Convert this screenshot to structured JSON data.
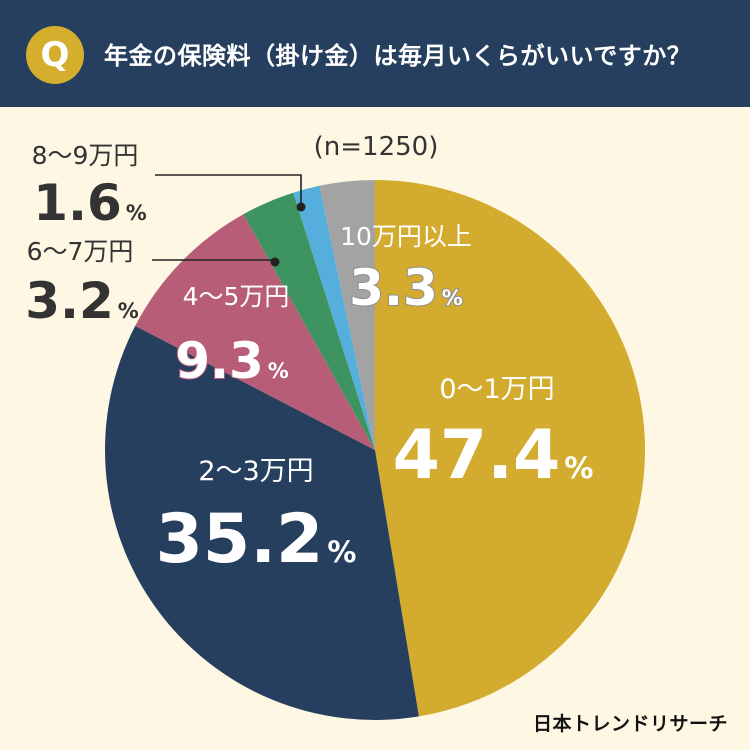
{
  "header": {
    "badge": "Q",
    "question": "年金の保険料（掛け金）は毎月いくらがいいですか？"
  },
  "chart_data": {
    "type": "pie",
    "title": "年金の保険料（掛け金）は毎月いくらがいいですか？",
    "sample_note": "(n=1250)",
    "slices": [
      {
        "label": "0〜1万円",
        "value": 47.4,
        "pct": "47.4",
        "unit": "%",
        "color": "#d3ab2e",
        "text_color": "#ffffff"
      },
      {
        "label": "2〜3万円",
        "value": 35.2,
        "pct": "35.2",
        "unit": "%",
        "color": "#273f5f",
        "text_color": "#ffffff"
      },
      {
        "label": "4〜5万円",
        "value": 9.3,
        "pct": "9.3",
        "unit": "%",
        "color": "#b85d77",
        "text_color": "#ffffff"
      },
      {
        "label": "6〜7万円",
        "value": 3.2,
        "pct": "3.2",
        "unit": "%",
        "color": "#3e9460",
        "text_color": "#333333"
      },
      {
        "label": "8〜9万円",
        "value": 1.6,
        "pct": "1.6",
        "unit": "%",
        "color": "#55aedc",
        "text_color": "#333333"
      },
      {
        "label": "10万円以上",
        "value": 3.3,
        "pct": "3.3",
        "unit": "%",
        "color": "#a3a3a3",
        "text_color": "#ffffff"
      }
    ]
  },
  "brand": "日本トレンドリサーチ"
}
